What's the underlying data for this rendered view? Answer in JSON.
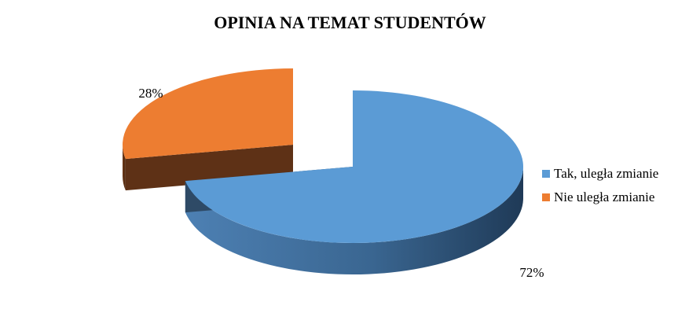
{
  "chart_data": {
    "type": "pie",
    "title": "OPINIA NA TEMAT STUDENTÓW",
    "slices": [
      {
        "name": "Tak, uległa zmianie",
        "value": 72,
        "label": "72%",
        "color": "#5b9bd5",
        "side_color": "#2e4a66"
      },
      {
        "name": "Nie uległa zmianie",
        "value": 28,
        "label": "28%",
        "color": "#ed7d31",
        "side_color": "#5e3116"
      }
    ],
    "legend_position": "right",
    "style": "3d-exploded"
  }
}
